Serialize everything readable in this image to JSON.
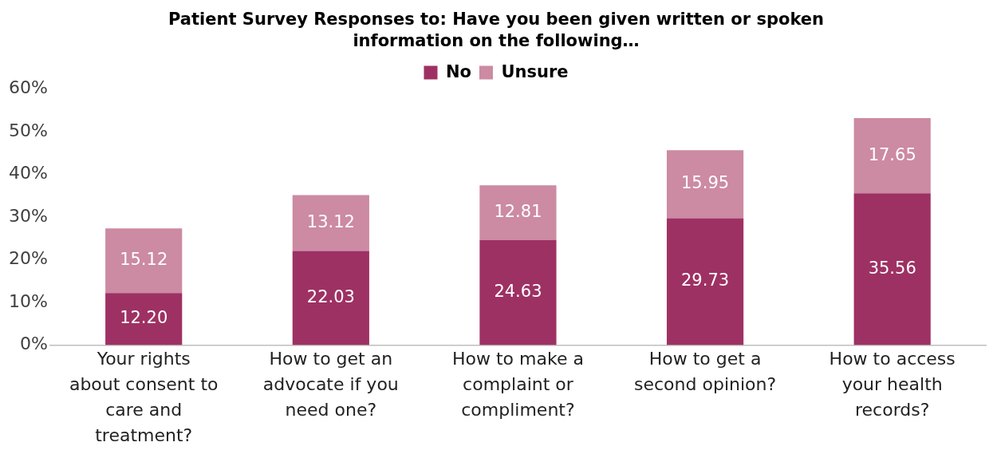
{
  "chart_data": {
    "type": "bar",
    "stacked": true,
    "title": "Patient Survey Responses to: Have you been given written or spoken information on the following…",
    "categories": [
      "Your rights about consent to care and treatment?",
      "How to get an advocate if you need one?",
      "How to make a complaint or compliment?",
      "How to get a second opinion?",
      "How to access your health records?"
    ],
    "series": [
      {
        "name": "No",
        "color": "#9e3163",
        "values": [
          12.2,
          22.03,
          24.63,
          29.73,
          35.56
        ],
        "value_labels": [
          "12.20",
          "22.03",
          "24.63",
          "29.73",
          "35.56"
        ]
      },
      {
        "name": "Unsure",
        "color": "#cc8aa3",
        "values": [
          15.12,
          13.12,
          12.81,
          15.95,
          17.65
        ],
        "value_labels": [
          "15.12",
          "13.12",
          "12.81",
          "15.95",
          "17.65"
        ]
      }
    ],
    "ylim": [
      0,
      60
    ],
    "yticks": [
      {
        "value": 0,
        "label": "0%"
      },
      {
        "value": 10,
        "label": "10%"
      },
      {
        "value": 20,
        "label": "20%"
      },
      {
        "value": 30,
        "label": "30%"
      },
      {
        "value": 40,
        "label": "40%"
      },
      {
        "value": 50,
        "label": "50%"
      },
      {
        "value": 60,
        "label": "60%"
      }
    ],
    "grid": false,
    "legend": "top"
  }
}
